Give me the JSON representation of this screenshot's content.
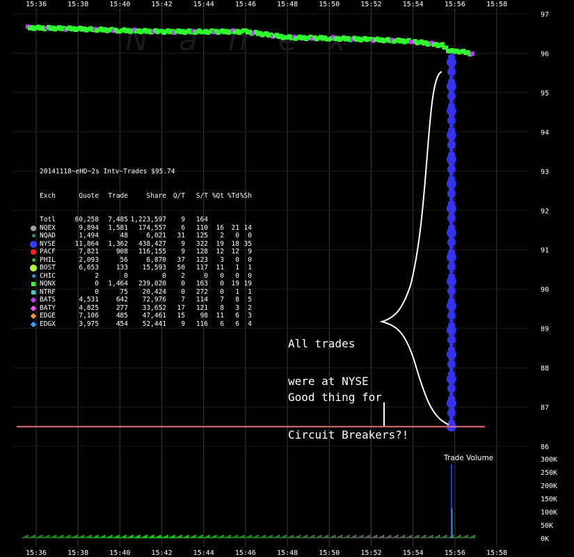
{
  "chart_data": {
    "type": "scatter",
    "x_ticks": [
      "15:36",
      "15:38",
      "15:40",
      "15:42",
      "15:44",
      "15:46",
      "15:48",
      "15:50",
      "15:52",
      "15:54",
      "15:56",
      "15:58"
    ],
    "y_ticks": [
      "97",
      "96",
      "95",
      "94",
      "93",
      "92",
      "91",
      "90",
      "89",
      "88",
      "87",
      "86"
    ],
    "ylim": [
      86,
      97
    ],
    "volume_ticks": [
      "300K",
      "250K",
      "200K",
      "150K",
      "100K",
      "50K",
      "0K"
    ],
    "volume_ylim": [
      0,
      300000
    ],
    "volume_title": "Trade Volume",
    "watermark": "Nanex",
    "circuit_breaker_level": 86.5,
    "price_path": [
      {
        "t": "15:35:36",
        "p": 96.65
      },
      {
        "t": "15:38:00",
        "p": 96.62
      },
      {
        "t": "15:40:00",
        "p": 96.58
      },
      {
        "t": "15:42:00",
        "p": 96.55
      },
      {
        "t": "15:44:00",
        "p": 96.55
      },
      {
        "t": "15:46:00",
        "p": 96.55
      },
      {
        "t": "15:48:00",
        "p": 96.4
      },
      {
        "t": "15:50:00",
        "p": 96.38
      },
      {
        "t": "15:52:00",
        "p": 96.35
      },
      {
        "t": "15:54:00",
        "p": 96.3
      },
      {
        "t": "15:55:24",
        "p": 96.2
      },
      {
        "t": "15:55:46",
        "p": 96.05
      },
      {
        "t": "15:56:12",
        "p": 96.05
      },
      {
        "t": "15:56:56",
        "p": 95.98
      }
    ],
    "crash_time": "15:55:50",
    "crash_from": 95.9,
    "crash_to": 86.5,
    "volume_spike": {
      "t": "15:55:50",
      "v": 280000
    }
  },
  "summary": {
    "header": "20141118~eHD~2s Intv~Trades $95.74",
    "columns": [
      "Exch",
      "Quote",
      "Trade",
      "Share",
      "Q/T",
      "S/T",
      "%Qt",
      "%Td",
      "%Sh"
    ],
    "rows": [
      {
        "marker": "none",
        "color": "",
        "cells": [
          "Totl",
          "60,258",
          "7,485",
          "1,223,597",
          "9",
          "164",
          "",
          "",
          ""
        ]
      },
      {
        "marker": "dot",
        "color": "#a0a0a0",
        "cells": [
          "NQEX",
          "9,894",
          "1,581",
          "174,557",
          "6",
          "110",
          "16",
          "21",
          "14"
        ]
      },
      {
        "marker": "dot-small",
        "color": "#2e9a5a",
        "cells": [
          "NQAD",
          "1,494",
          "48",
          "6,021",
          "31",
          "125",
          "2",
          "0",
          "0"
        ]
      },
      {
        "marker": "dot-big",
        "color": "#3b3bff",
        "cells": [
          "NYSE",
          "11,864",
          "1,362",
          "438,427",
          "9",
          "322",
          "19",
          "18",
          "35"
        ]
      },
      {
        "marker": "dot",
        "color": "#ff2020",
        "cells": [
          "PACF",
          "7,821",
          "908",
          "116,155",
          "9",
          "128",
          "12",
          "12",
          "9"
        ]
      },
      {
        "marker": "dot-small",
        "color": "#3cc03c",
        "cells": [
          "PHIL",
          "2,093",
          "56",
          "6,870",
          "37",
          "123",
          "3",
          "0",
          "0"
        ]
      },
      {
        "marker": "dot-big",
        "color": "#b8ff30",
        "cells": [
          "BOST",
          "6,653",
          "133",
          "15,593",
          "50",
          "117",
          "11",
          "1",
          "1"
        ]
      },
      {
        "marker": "dot-small",
        "color": "#2aa0e0",
        "cells": [
          "CHIC",
          "2",
          "0",
          "0",
          "2",
          "0",
          "0",
          "0",
          "0"
        ]
      },
      {
        "marker": "square",
        "color": "#30ff30",
        "cells": [
          "NQNX",
          "0",
          "1,464",
          "239,020",
          "0",
          "163",
          "0",
          "19",
          "19"
        ]
      },
      {
        "marker": "square",
        "color": "#30d0d0",
        "cells": [
          "NTRF",
          "0",
          "75",
          "20,424",
          "0",
          "272",
          "0",
          "1",
          "1"
        ]
      },
      {
        "marker": "diamond",
        "color": "#c040ff",
        "cells": [
          "BATS",
          "4,531",
          "642",
          "72,976",
          "7",
          "114",
          "7",
          "8",
          "5"
        ]
      },
      {
        "marker": "diamond",
        "color": "#ff50ff",
        "cells": [
          "BATY",
          "4,825",
          "277",
          "33,652",
          "17",
          "121",
          "8",
          "3",
          "2"
        ]
      },
      {
        "marker": "diamond",
        "color": "#ff9a20",
        "cells": [
          "EDGE",
          "7,106",
          "485",
          "47,461",
          "15",
          "98",
          "11",
          "6",
          "3"
        ]
      },
      {
        "marker": "diamond",
        "color": "#30a0ff",
        "cells": [
          "EDGX",
          "3,975",
          "454",
          "52,441",
          "9",
          "116",
          "6",
          "6",
          "4"
        ]
      }
    ]
  },
  "annotations": {
    "nyse_line1": "All trades",
    "nyse_line2": "were at NYSE",
    "cb_line1": "Good thing for",
    "cb_line2": "Circuit Breakers?!"
  },
  "colors": {
    "background": "#000000",
    "gridline": "#3a3a3a",
    "nyse": "#3434f0",
    "trade_green": "#30ff30",
    "circuit_line": "#e07070"
  }
}
